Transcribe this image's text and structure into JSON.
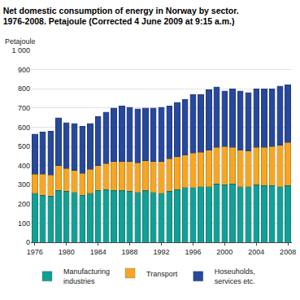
{
  "chart_data": {
    "type": "bar",
    "stacked": true,
    "title": [
      "Net domestic consumption of energy in Norway by sector.",
      "1976-2008. Petajoule (Corrected 4 June 2009 at 9:15 a.m.)"
    ],
    "ylabel": "Petajoule",
    "x": [
      1976,
      1977,
      1978,
      1979,
      1980,
      1981,
      1982,
      1983,
      1984,
      1985,
      1986,
      1987,
      1988,
      1989,
      1990,
      1991,
      1992,
      1993,
      1994,
      1995,
      1996,
      1997,
      1998,
      1999,
      2000,
      2001,
      2002,
      2003,
      2004,
      2005,
      2006,
      2007,
      2008
    ],
    "xlim": [
      1975.5,
      2008.5
    ],
    "xticks": [
      1976,
      1980,
      1984,
      1988,
      1992,
      1996,
      2000,
      2004,
      2008
    ],
    "ylim": [
      0,
      1000
    ],
    "yticks": [
      0,
      100,
      200,
      300,
      400,
      500,
      600,
      700,
      800,
      900,
      {
        "value": 1000,
        "label": "1 000"
      }
    ],
    "grid": true,
    "legend": "bottom",
    "series": [
      {
        "name": "Manufacturing industries",
        "color": "#12a096",
        "values": [
          255,
          245,
          240,
          270,
          265,
          260,
          245,
          255,
          270,
          275,
          270,
          270,
          265,
          260,
          270,
          260,
          255,
          265,
          275,
          285,
          285,
          290,
          290,
          305,
          300,
          305,
          290,
          290,
          300,
          295,
          295,
          290,
          295
        ]
      },
      {
        "name": "Transport",
        "color": "#f5a623",
        "values": [
          100,
          110,
          110,
          130,
          120,
          115,
          115,
          125,
          130,
          135,
          150,
          150,
          155,
          155,
          155,
          160,
          165,
          170,
          170,
          170,
          180,
          180,
          190,
          190,
          200,
          190,
          190,
          185,
          195,
          200,
          205,
          215,
          225
        ]
      },
      {
        "name": "Hoseuholds, services etc.",
        "color": "#27489b",
        "values": [
          210,
          220,
          230,
          250,
          240,
          245,
          245,
          240,
          255,
          270,
          280,
          290,
          285,
          280,
          275,
          280,
          285,
          275,
          285,
          290,
          305,
          300,
          315,
          315,
          290,
          305,
          310,
          305,
          305,
          305,
          300,
          310,
          300
        ]
      }
    ]
  }
}
